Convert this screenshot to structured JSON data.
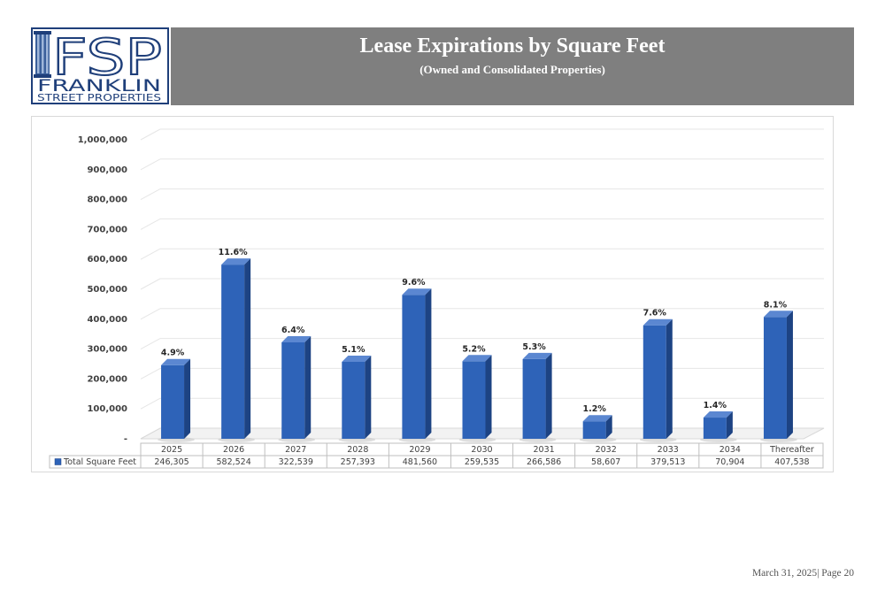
{
  "header": {
    "title": "Lease Expirations by Square Feet",
    "subtitle": "(Owned and Consolidated Properties)",
    "band_color": "#7f7f7f"
  },
  "logo": {
    "monogram": "FSP",
    "line1": "FRANKLIN",
    "line2": "STREET PROPERTIES",
    "color": "#1f3f7a"
  },
  "footer": {
    "text": "March 31, 2025| Page 20"
  },
  "chart_data": {
    "type": "bar",
    "categories": [
      "2025",
      "2026",
      "2027",
      "2028",
      "2029",
      "2030",
      "2031",
      "2032",
      "2033",
      "2034",
      "Thereafter"
    ],
    "series": [
      {
        "name": "Total Square Feet",
        "values": [
          246305,
          582524,
          322539,
          257393,
          481560,
          259535,
          266586,
          58607,
          379513,
          70904,
          407538
        ],
        "display_values": [
          "246,305",
          "582,524",
          "322,539",
          "257,393",
          "481,560",
          "259,535",
          "266,586",
          "58,607",
          "379,513",
          "70,904",
          "407,538"
        ],
        "data_labels": [
          "4.9%",
          "11.6%",
          "6.4%",
          "5.1%",
          "9.6%",
          "5.2%",
          "5.3%",
          "1.2%",
          "7.6%",
          "1.4%",
          "8.1%"
        ],
        "color": "#2e63b8"
      }
    ],
    "ylim": [
      0,
      1000000
    ],
    "yticks": [
      0,
      100000,
      200000,
      300000,
      400000,
      500000,
      600000,
      700000,
      800000,
      900000,
      1000000
    ],
    "ytick_labels": [
      "-",
      "100,000",
      "200,000",
      "300,000",
      "400,000",
      "500,000",
      "600,000",
      "700,000",
      "800,000",
      "900,000",
      "1,000,000"
    ],
    "grid": true,
    "legend": "data-table-row",
    "bar_style": "3d"
  }
}
